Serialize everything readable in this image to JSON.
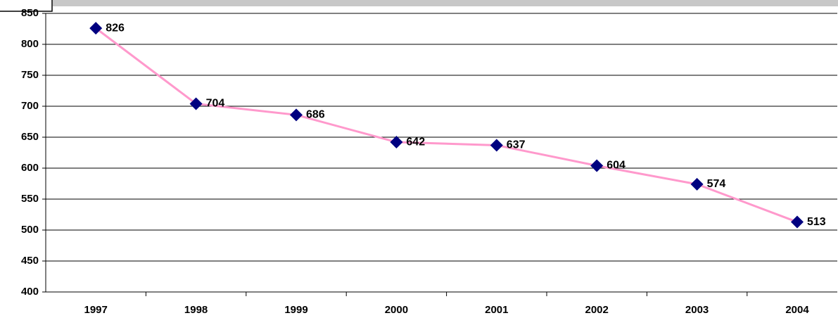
{
  "chart_data": {
    "type": "line",
    "categories": [
      "1997",
      "1998",
      "1999",
      "2000",
      "2001",
      "2002",
      "2003",
      "2004"
    ],
    "series": [
      {
        "color": "#ff99cc",
        "marker_color": "#000080",
        "values": [
          826,
          704,
          686,
          642,
          637,
          604,
          574,
          513
        ]
      }
    ],
    "ylim": [
      400,
      850
    ],
    "yticks": [
      400,
      450,
      500,
      550,
      600,
      650,
      700,
      750,
      800,
      850
    ],
    "grid": true
  }
}
